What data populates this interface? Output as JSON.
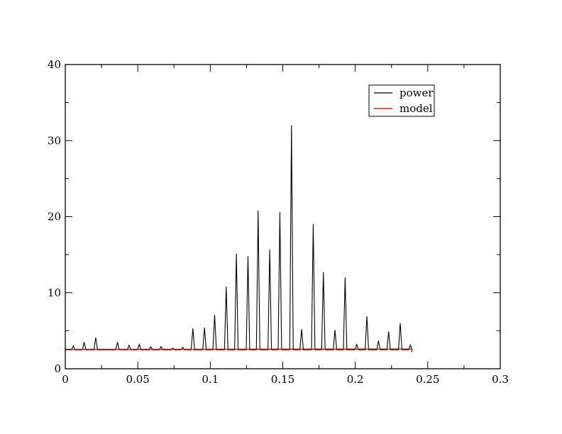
{
  "chart_data": {
    "type": "line",
    "title": "",
    "xlabel": "",
    "ylabel": "",
    "xlim": [
      0,
      0.3
    ],
    "ylim": [
      0,
      40
    ],
    "x_ticks": [
      0,
      0.05,
      0.1,
      0.15,
      0.2,
      0.25,
      0.3
    ],
    "x_tick_labels": [
      "0",
      "0.05",
      "0.1",
      "0.15",
      "0.2",
      "0.25",
      "0.3"
    ],
    "y_ticks": [
      0,
      10,
      20,
      30,
      40
    ],
    "y_tick_labels": [
      "0",
      "10",
      "20",
      "30",
      "40"
    ],
    "grid": false,
    "legend_position": "top-right",
    "series": [
      {
        "name": "power",
        "color": "#000000",
        "baseline": 2.5,
        "x_end": 0.239,
        "end_value": 2.2,
        "peaks": [
          {
            "x": 0.0055,
            "y": 3.0
          },
          {
            "x": 0.013,
            "y": 3.5
          },
          {
            "x": 0.021,
            "y": 4.1
          },
          {
            "x": 0.036,
            "y": 3.5
          },
          {
            "x": 0.044,
            "y": 3.1
          },
          {
            "x": 0.051,
            "y": 3.2
          },
          {
            "x": 0.059,
            "y": 2.9
          },
          {
            "x": 0.066,
            "y": 2.9
          },
          {
            "x": 0.074,
            "y": 2.7
          },
          {
            "x": 0.081,
            "y": 2.8
          },
          {
            "x": 0.088,
            "y": 5.3
          },
          {
            "x": 0.096,
            "y": 5.4
          },
          {
            "x": 0.103,
            "y": 7.1
          },
          {
            "x": 0.111,
            "y": 10.8
          },
          {
            "x": 0.118,
            "y": 15.1
          },
          {
            "x": 0.126,
            "y": 14.8
          },
          {
            "x": 0.133,
            "y": 20.8
          },
          {
            "x": 0.141,
            "y": 15.7
          },
          {
            "x": 0.148,
            "y": 20.6
          },
          {
            "x": 0.156,
            "y": 32.0
          },
          {
            "x": 0.163,
            "y": 5.2
          },
          {
            "x": 0.171,
            "y": 19.0
          },
          {
            "x": 0.178,
            "y": 12.7
          },
          {
            "x": 0.186,
            "y": 5.1
          },
          {
            "x": 0.193,
            "y": 12.0
          },
          {
            "x": 0.201,
            "y": 3.2
          },
          {
            "x": 0.208,
            "y": 6.9
          },
          {
            "x": 0.216,
            "y": 3.7
          },
          {
            "x": 0.223,
            "y": 4.9
          },
          {
            "x": 0.231,
            "y": 6.0
          },
          {
            "x": 0.238,
            "y": 3.1
          }
        ]
      },
      {
        "name": "model",
        "color": "#cc0000",
        "x": [
          0,
          0.239
        ],
        "y": [
          2.55,
          2.6
        ]
      }
    ]
  }
}
